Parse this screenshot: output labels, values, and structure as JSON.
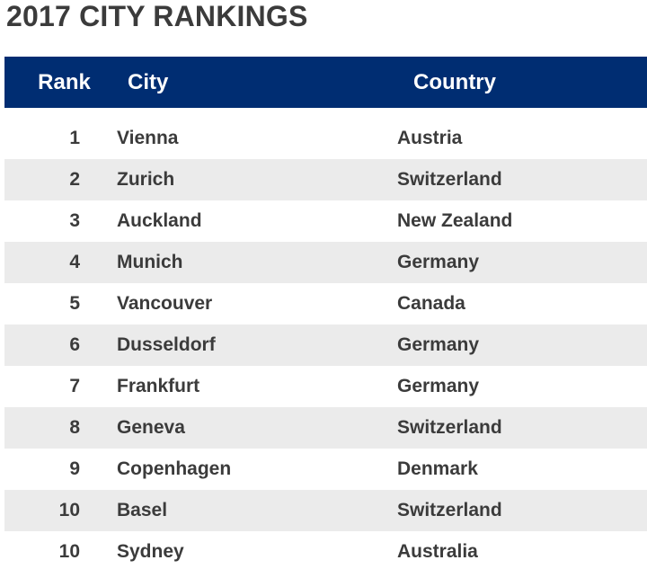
{
  "chart_data": {
    "type": "table",
    "title": "2017 CITY RANKINGS",
    "columns": [
      "Rank",
      "City",
      "Country"
    ],
    "rows": [
      {
        "rank": "1",
        "city": "Vienna",
        "country": "Austria"
      },
      {
        "rank": "2",
        "city": "Zurich",
        "country": "Switzerland"
      },
      {
        "rank": "3",
        "city": "Auckland",
        "country": "New Zealand"
      },
      {
        "rank": "4",
        "city": "Munich",
        "country": "Germany"
      },
      {
        "rank": "5",
        "city": "Vancouver",
        "country": "Canada"
      },
      {
        "rank": "6",
        "city": "Dusseldorf",
        "country": "Germany"
      },
      {
        "rank": "7",
        "city": "Frankfurt",
        "country": "Germany"
      },
      {
        "rank": "8",
        "city": "Geneva",
        "country": "Switzerland"
      },
      {
        "rank": "9",
        "city": "Copenhagen",
        "country": "Denmark"
      },
      {
        "rank": "10",
        "city": "Basel",
        "country": "Switzerland"
      },
      {
        "rank": "10",
        "city": "Sydney",
        "country": "Australia"
      }
    ]
  },
  "colors": {
    "header_background": "#002d72",
    "header_text": "#ffffff",
    "row_shade": "#ebebeb",
    "body_text": "#3b3b3b"
  }
}
